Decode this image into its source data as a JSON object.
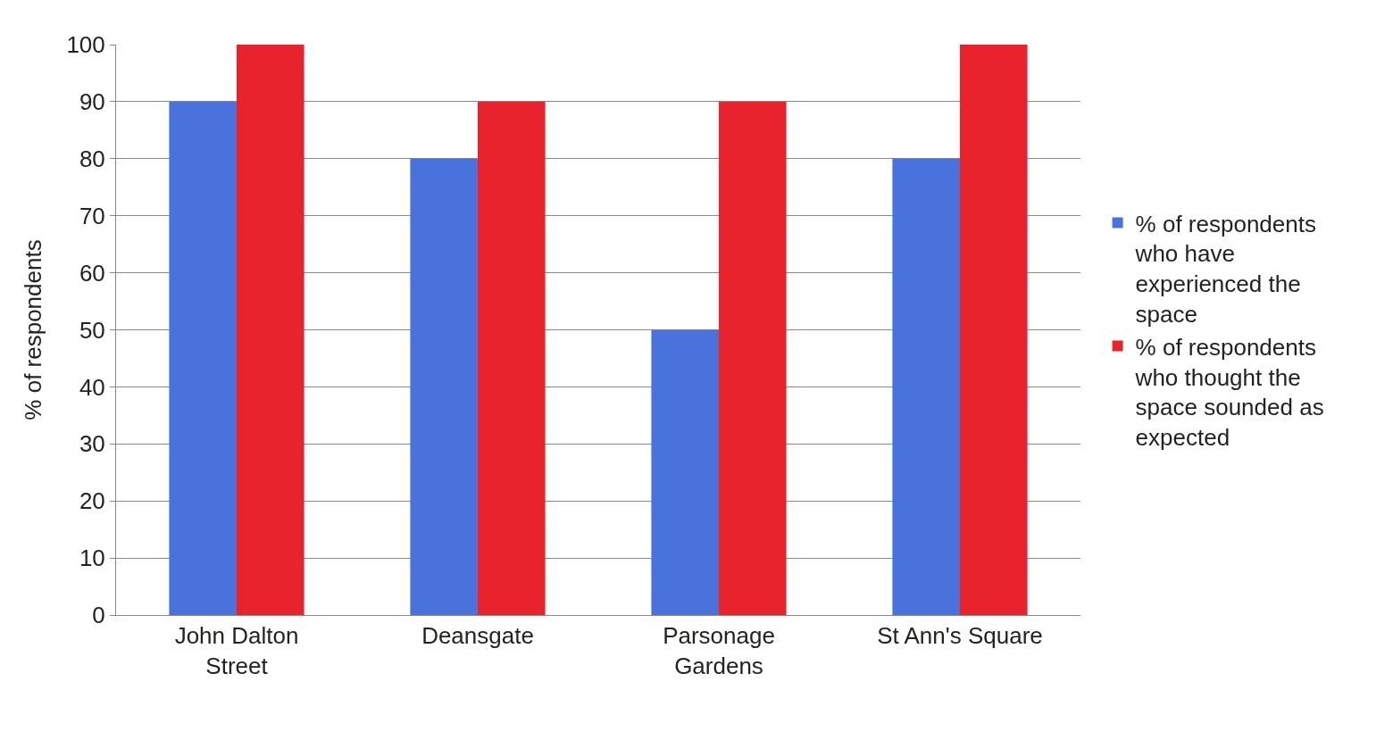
{
  "chart_data": {
    "type": "bar",
    "ylabel": "% of respondents",
    "categories": [
      "John Dalton Street",
      "Deansgate",
      "Parsonage Gardens",
      "St Ann's Square"
    ],
    "series": [
      {
        "name": "% of respondents who have experienced the space",
        "color": "#4a72dc",
        "values": [
          90,
          80,
          50,
          80
        ]
      },
      {
        "name": "% of respondents who thought the space sounded as expected",
        "color": "#e8232b",
        "values": [
          100,
          90,
          90,
          100
        ]
      }
    ],
    "ylim": [
      0,
      100
    ],
    "yticks": [
      0,
      10,
      20,
      30,
      40,
      50,
      60,
      70,
      80,
      90,
      100
    ],
    "grid": "y",
    "legend": "right"
  }
}
